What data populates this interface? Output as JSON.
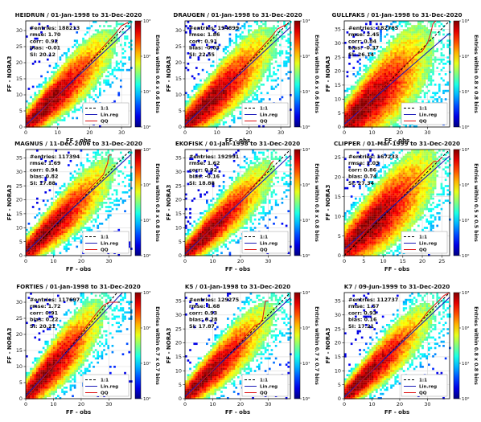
{
  "figure": {
    "xlabel": "FF - obs",
    "ylabel": "FF - NORA3",
    "colorbar_label_prefix": "Entries within",
    "colorbar_label_suffix": "bins"
  },
  "legend": [
    {
      "label": "1:1",
      "color": "#000000",
      "style": "dashed"
    },
    {
      "label": "Lin.reg",
      "color": "#1a1ab8",
      "style": "solid"
    },
    {
      "label": "QQ",
      "color": "#e01010",
      "style": "solid"
    }
  ],
  "chart_data": [
    {
      "type": "heatmap",
      "title": "HEIDRUN / 01-Jan-1998 to 31-Dec-2020",
      "xlim": [
        0,
        33
      ],
      "ylim": [
        0,
        33
      ],
      "xticks": [
        0,
        10,
        20,
        30
      ],
      "yticks": [
        0,
        5,
        10,
        15,
        20,
        25,
        30
      ],
      "stats": {
        "entries": "#entries: 188213",
        "rmse": "rmse:  1.70",
        "corr": "corr:  0.92",
        "bias": "bias: -0.01",
        "si": "SI: 20.12"
      },
      "bin_size": "0.6 x 0.6",
      "colorbar_ticks": [
        "10⁰",
        "10¹",
        "10²",
        "10³"
      ],
      "spread": 1.6,
      "linreg": {
        "slope": 0.93,
        "intercept": 0.6
      },
      "qq": [
        [
          0,
          0
        ],
        [
          10,
          10
        ],
        [
          20,
          20.3
        ],
        [
          28,
          29
        ],
        [
          30,
          31.5
        ],
        [
          32,
          32.5
        ]
      ]
    },
    {
      "type": "heatmap",
      "title": "DRAUGEN / 01-Jan-1998 to 31-Dec-2020",
      "xlim": [
        0,
        33
      ],
      "ylim": [
        0,
        33
      ],
      "xticks": [
        0,
        10,
        20,
        30
      ],
      "yticks": [
        0,
        5,
        10,
        15,
        20,
        25,
        30
      ],
      "stats": {
        "entries": "#entries: 194899",
        "rmse": "rmse:  1.86",
        "corr": "corr:  0.91",
        "bias": "bias: -0.03",
        "si": "SI: 22.55"
      },
      "bin_size": "0.6 x 0.6",
      "colorbar_ticks": [
        "10⁰",
        "10¹",
        "10²",
        "10³"
      ],
      "spread": 1.8,
      "linreg": {
        "slope": 0.92,
        "intercept": 0.7
      },
      "qq": [
        [
          0,
          0
        ],
        [
          10,
          10
        ],
        [
          20,
          20.4
        ],
        [
          27,
          28
        ],
        [
          29,
          30.5
        ],
        [
          30,
          31
        ],
        [
          32,
          32
        ]
      ]
    },
    {
      "type": "heatmap",
      "title": "GULLFAKS / 01-Jan-1998 to 31-Dec-2020",
      "xlim": [
        0,
        38
      ],
      "ylim": [
        0,
        38
      ],
      "xticks": [
        0,
        10,
        20,
        30
      ],
      "yticks": [
        0,
        5,
        10,
        15,
        20,
        25,
        30,
        35
      ],
      "stats": {
        "entries": "#entries: 182785",
        "rmse": "rmse:  2.45",
        "corr": "corr:  0.84",
        "bias": "bias: -0.37",
        "si": "SI: 26.14"
      },
      "bin_size": "0.8 x 0.8",
      "colorbar_ticks": [
        "10⁰",
        "10¹",
        "10²",
        "10³"
      ],
      "spread": 2.6,
      "linreg": {
        "slope": 0.86,
        "intercept": 1.0
      },
      "qq": [
        [
          0,
          0
        ],
        [
          10,
          10
        ],
        [
          20,
          20.5
        ],
        [
          26,
          26
        ],
        [
          28,
          27
        ],
        [
          30,
          30
        ],
        [
          31,
          33
        ],
        [
          32,
          37
        ],
        [
          33,
          38
        ]
      ]
    },
    {
      "type": "heatmap",
      "title": "MAGNUS / 11-Dec-2006 to 31-Dec-2020",
      "xlim": [
        0,
        38
      ],
      "ylim": [
        0,
        38
      ],
      "xticks": [
        0,
        10,
        20,
        30
      ],
      "yticks": [
        0,
        5,
        10,
        15,
        20,
        25,
        30,
        35
      ],
      "stats": {
        "entries": "#entries: 117394",
        "rmse": "rmse:  1.69",
        "corr": "corr:  0.94",
        "bias": "bias:  0.82",
        "si": "SI: 17.88"
      },
      "bin_size": "0.8 x 0.8",
      "colorbar_ticks": [
        "10⁰",
        "10¹",
        "10²",
        "10³"
      ],
      "spread": 1.7,
      "linreg": {
        "slope": 0.92,
        "intercept": 1.3
      },
      "qq": [
        [
          0,
          0
        ],
        [
          10,
          10.8
        ],
        [
          20,
          21
        ],
        [
          25,
          26
        ],
        [
          28,
          29
        ],
        [
          29.5,
          33
        ],
        [
          30,
          36
        ],
        [
          31,
          36
        ]
      ]
    },
    {
      "type": "heatmap",
      "title": "EKOFISK / 01-Jan-1998 to 31-Dec-2020",
      "xlim": [
        0,
        38
      ],
      "ylim": [
        0,
        38
      ],
      "xticks": [
        0,
        10,
        20,
        30
      ],
      "yticks": [
        0,
        5,
        10,
        15,
        20,
        25,
        30,
        35
      ],
      "stats": {
        "entries": "#entries: 192991",
        "rmse": "rmse:  1.62",
        "corr": "corr:  0.92",
        "bias": "bias: -0.16",
        "si": "SI: 18.88"
      },
      "bin_size": "0.8 x 0.8",
      "colorbar_ticks": [
        "10⁰",
        "10¹",
        "10²",
        "10³"
      ],
      "spread": 1.6,
      "linreg": {
        "slope": 0.93,
        "intercept": 0.6
      },
      "qq": [
        [
          0,
          0
        ],
        [
          10,
          10
        ],
        [
          20,
          20
        ],
        [
          28,
          28.5
        ],
        [
          30,
          31
        ],
        [
          31,
          33
        ],
        [
          32,
          34
        ]
      ]
    },
    {
      "type": "heatmap",
      "title": "CLIPPER / 01-Mar-1999 to 31-Dec-2020",
      "xlim": [
        0,
        27
      ],
      "ylim": [
        0,
        27
      ],
      "xticks": [
        0,
        5,
        10,
        15,
        20,
        25
      ],
      "yticks": [
        0,
        5,
        10,
        15,
        20,
        25
      ],
      "stats": {
        "entries": "#entries: 167233",
        "rmse": "rmse:  2.03",
        "corr": "corr:  0.86",
        "bias": "bias:  0.74",
        "si": "SI: 27.34"
      },
      "bin_size": "0.5 x 0.5",
      "colorbar_ticks": [
        "10⁰",
        "10¹",
        "10²",
        "10³"
      ],
      "spread": 2.0,
      "linreg": {
        "slope": 0.88,
        "intercept": 1.6
      },
      "qq": [
        [
          0,
          0.5
        ],
        [
          8,
          9
        ],
        [
          15,
          16
        ],
        [
          20,
          21
        ],
        [
          23,
          24
        ],
        [
          24,
          24
        ],
        [
          25,
          25
        ]
      ]
    },
    {
      "type": "heatmap",
      "title": "FORTIES / 01-Jan-1998 to 31-Dec-2020",
      "xlim": [
        0,
        38
      ],
      "ylim": [
        0,
        33
      ],
      "xticks": [
        0,
        10,
        20,
        30
      ],
      "yticks": [
        0,
        5,
        10,
        15,
        20,
        25,
        30
      ],
      "stats": {
        "entries": "#entries: 117697",
        "rmse": "rmse:  1.72",
        "corr": "corr:  0.91",
        "bias": "bias:  0.22",
        "si": "SI: 20.21"
      },
      "bin_size": "0.7 x 0.7",
      "colorbar_ticks": [
        "10⁰",
        "10¹",
        "10²",
        "10³"
      ],
      "spread": 1.7,
      "linreg": {
        "slope": 0.92,
        "intercept": 0.9
      },
      "qq": [
        [
          0,
          0
        ],
        [
          10,
          10.2
        ],
        [
          20,
          20.5
        ],
        [
          26,
          27
        ],
        [
          28,
          29
        ],
        [
          30,
          30
        ],
        [
          34,
          30
        ]
      ]
    },
    {
      "type": "heatmap",
      "title": "K5 / 01-Jan-1998 to 31-Dec-2020",
      "xlim": [
        0,
        38
      ],
      "ylim": [
        0,
        38
      ],
      "xticks": [
        0,
        10,
        20,
        30
      ],
      "yticks": [
        0,
        5,
        10,
        15,
        20,
        25,
        30,
        35
      ],
      "stats": {
        "entries": "#entries: 129275",
        "rmse": "rmse:  1.68",
        "corr": "corr:  0.93",
        "bias": "bias:  0.28",
        "si": "SI: 17.87"
      },
      "bin_size": "0.7 x 0.7",
      "colorbar_ticks": [
        "10⁰",
        "10¹",
        "10²",
        "10³"
      ],
      "spread": 1.7,
      "linreg": {
        "slope": 0.93,
        "intercept": 0.8
      },
      "qq": [
        [
          0,
          0
        ],
        [
          10,
          10.3
        ],
        [
          20,
          20.5
        ],
        [
          25,
          26
        ],
        [
          27,
          27
        ],
        [
          28,
          28.5
        ],
        [
          29,
          35
        ],
        [
          30,
          35
        ]
      ]
    },
    {
      "type": "heatmap",
      "title": "K7 / 09-Jun-1999 to 31-Dec-2020",
      "xlim": [
        0,
        38
      ],
      "ylim": [
        0,
        38
      ],
      "xticks": [
        0,
        10,
        20,
        30
      ],
      "yticks": [
        0,
        5,
        10,
        15,
        20,
        25,
        30,
        35
      ],
      "stats": {
        "entries": "#entries: 112737",
        "rmse": "rmse:  1.57",
        "corr": "corr:  0.93",
        "bias": "bias:  0.16",
        "si": "SI: 17.21"
      },
      "bin_size": "0.8 x 0.8",
      "colorbar_ticks": [
        "10⁰",
        "10¹",
        "10²",
        "10³"
      ],
      "spread": 1.6,
      "linreg": {
        "slope": 0.94,
        "intercept": 0.6
      },
      "qq": [
        [
          0,
          0
        ],
        [
          10,
          10.2
        ],
        [
          20,
          20.3
        ],
        [
          27,
          27
        ],
        [
          30,
          31
        ],
        [
          33,
          34
        ],
        [
          36,
          37
        ],
        [
          38,
          38
        ]
      ]
    }
  ]
}
